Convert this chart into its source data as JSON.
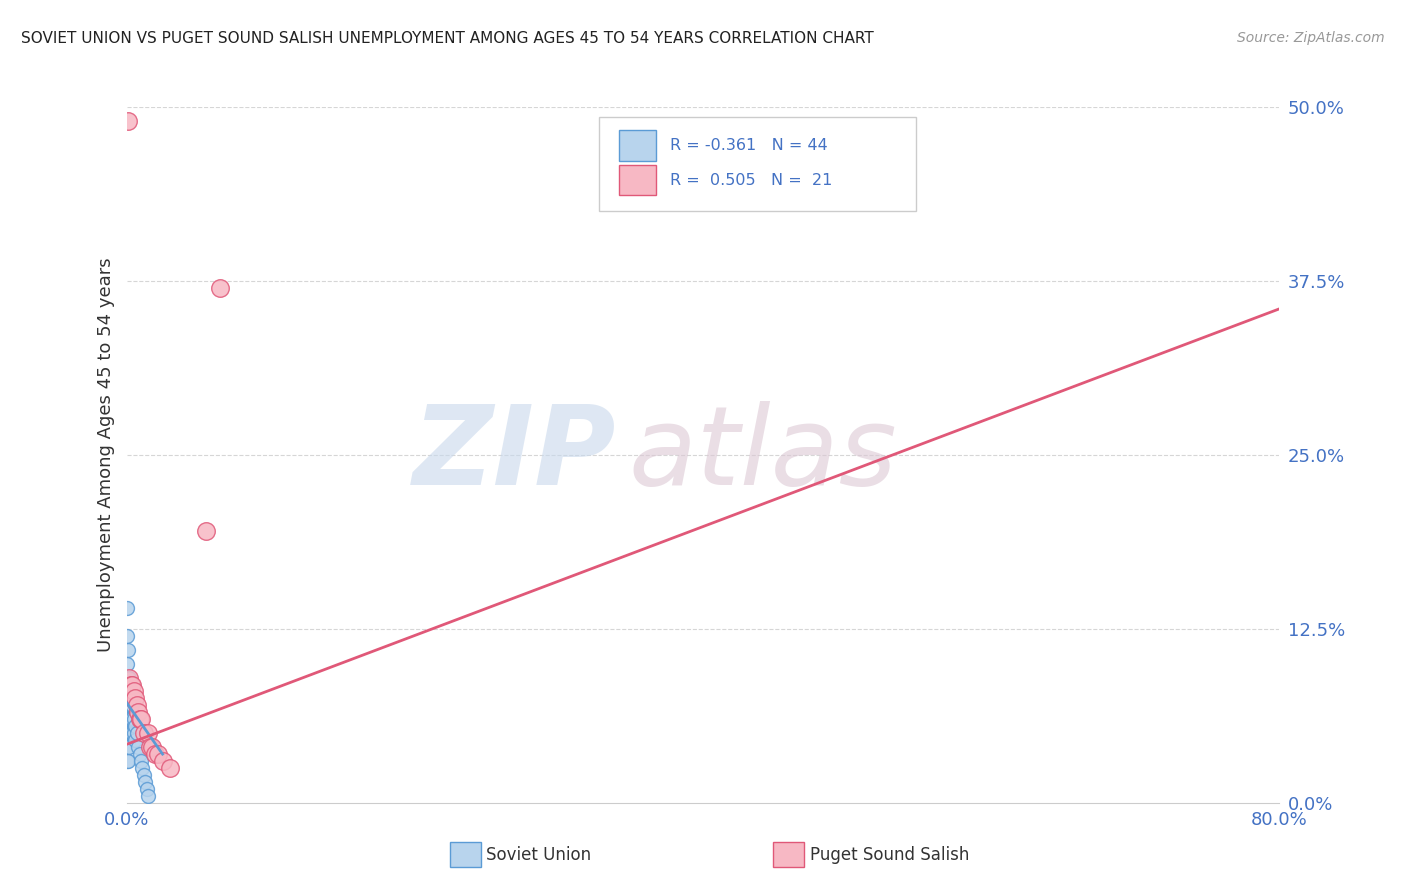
{
  "title": "SOVIET UNION VS PUGET SOUND SALISH UNEMPLOYMENT AMONG AGES 45 TO 54 YEARS CORRELATION CHART",
  "source": "Source: ZipAtlas.com",
  "ylabel_label": "Unemployment Among Ages 45 to 54 years",
  "legend_label1": "Soviet Union",
  "legend_label2": "Puget Sound Salish",
  "r1": -0.361,
  "n1": 44,
  "r2": 0.505,
  "n2": 21,
  "color_blue_fill": "#b8d4ed",
  "color_blue_edge": "#5b9bd5",
  "color_pink_fill": "#f7b8c4",
  "color_pink_edge": "#e05878",
  "color_blue_text": "#4472c4",
  "color_axis_text": "#4472c4",
  "color_grid": "#cccccc",
  "xlim": [
    0.0,
    0.8
  ],
  "ylim": [
    0.0,
    0.5
  ],
  "x_ticks": [
    0.0,
    0.8
  ],
  "x_tick_labels": [
    "0.0%",
    "80.0%"
  ],
  "y_ticks": [
    0.0,
    0.125,
    0.25,
    0.375,
    0.5
  ],
  "y_tick_labels": [
    "0.0%",
    "12.5%",
    "25.0%",
    "37.5%",
    "50.0%"
  ],
  "background": "#ffffff",
  "soviet_x": [
    0.0,
    0.0,
    0.0,
    0.0,
    0.0,
    0.0,
    0.0,
    0.0,
    0.0,
    0.0,
    0.001,
    0.001,
    0.001,
    0.001,
    0.001,
    0.001,
    0.001,
    0.001,
    0.002,
    0.002,
    0.002,
    0.002,
    0.002,
    0.002,
    0.003,
    0.003,
    0.003,
    0.003,
    0.004,
    0.004,
    0.004,
    0.005,
    0.005,
    0.006,
    0.006,
    0.007,
    0.008,
    0.009,
    0.01,
    0.011,
    0.012,
    0.013,
    0.014,
    0.015
  ],
  "soviet_y": [
    0.14,
    0.12,
    0.1,
    0.09,
    0.08,
    0.07,
    0.06,
    0.05,
    0.04,
    0.03,
    0.11,
    0.09,
    0.08,
    0.07,
    0.06,
    0.05,
    0.04,
    0.03,
    0.09,
    0.08,
    0.07,
    0.06,
    0.05,
    0.04,
    0.08,
    0.07,
    0.06,
    0.05,
    0.07,
    0.06,
    0.05,
    0.06,
    0.05,
    0.055,
    0.045,
    0.05,
    0.04,
    0.035,
    0.03,
    0.025,
    0.02,
    0.015,
    0.01,
    0.005
  ],
  "puget_x": [
    0.001,
    0.002,
    0.003,
    0.0035,
    0.004,
    0.005,
    0.006,
    0.007,
    0.008,
    0.009,
    0.01,
    0.012,
    0.015,
    0.016,
    0.018,
    0.02,
    0.022,
    0.025,
    0.03,
    0.055,
    0.065
  ],
  "puget_y": [
    0.49,
    0.09,
    0.085,
    0.075,
    0.085,
    0.08,
    0.075,
    0.07,
    0.065,
    0.06,
    0.06,
    0.05,
    0.05,
    0.04,
    0.04,
    0.035,
    0.035,
    0.03,
    0.025,
    0.195,
    0.37
  ],
  "blue_line_x": [
    0.0,
    0.025
  ],
  "blue_line_y": [
    0.072,
    0.035
  ],
  "pink_line_x": [
    0.0,
    0.8
  ],
  "pink_line_y": [
    0.042,
    0.355
  ],
  "watermark_zip_color": "#c8d8ec",
  "watermark_atlas_color": "#dcc8d4"
}
